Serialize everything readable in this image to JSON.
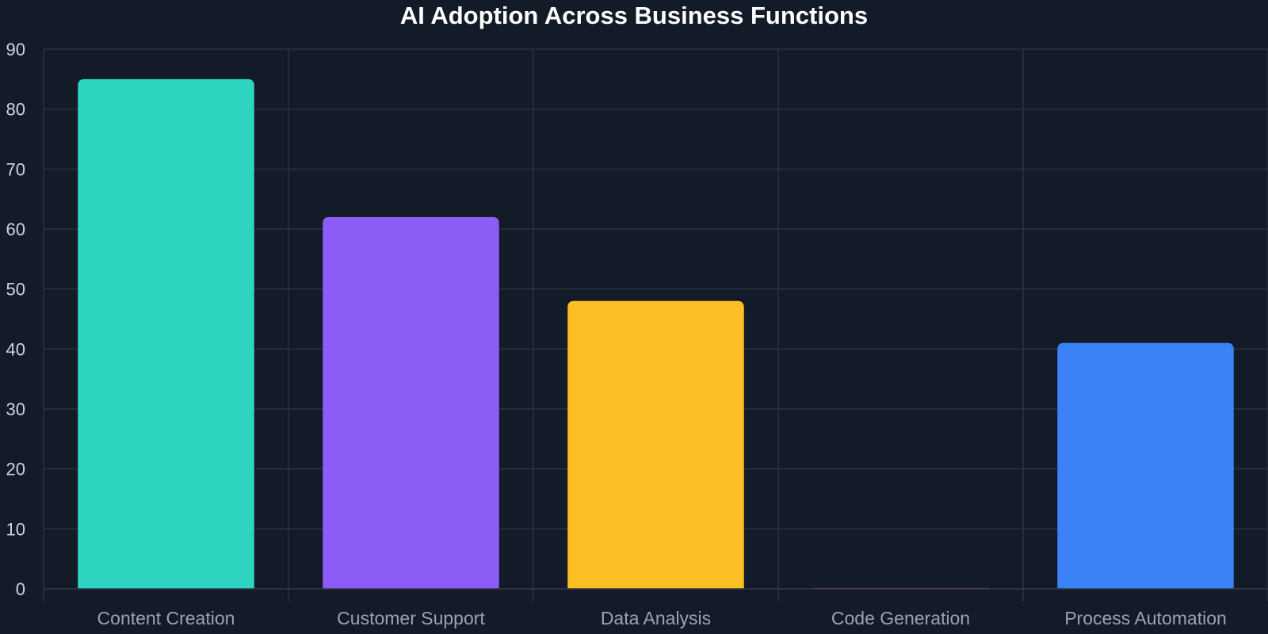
{
  "chart_data": {
    "type": "bar",
    "title": "AI Adoption Across Business Functions",
    "xlabel": "",
    "ylabel": "",
    "categories": [
      "Content Creation",
      "Customer Support",
      "Data Analysis",
      "Code Generation",
      "Process Automation"
    ],
    "values": [
      85,
      62,
      48,
      0,
      41
    ],
    "colors": [
      "#2dd4bf",
      "#8b5cf6",
      "#fbbf24",
      "#f05252",
      "#3b82f6"
    ],
    "ylim": [
      0,
      90
    ],
    "yticks": [
      0,
      10,
      20,
      30,
      40,
      50,
      60,
      70,
      80,
      90
    ],
    "grid": true,
    "legend": "none"
  }
}
